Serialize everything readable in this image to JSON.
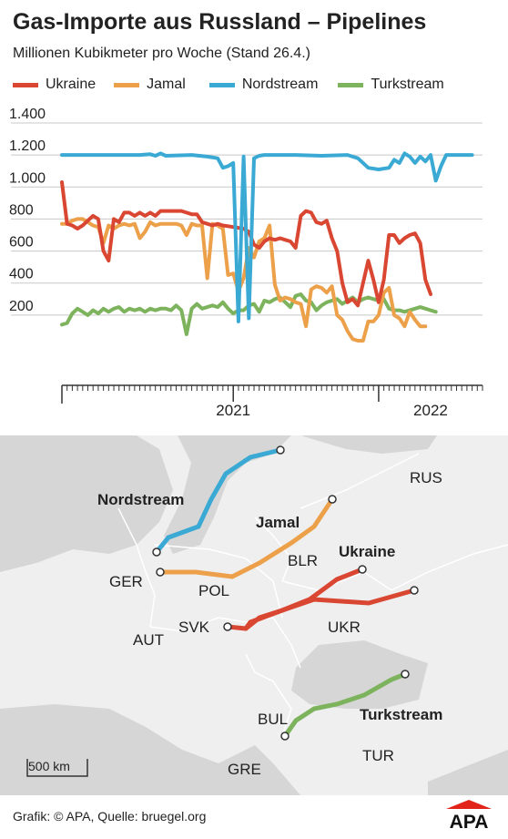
{
  "title": "Gas-Importe aus Russland – Pipelines",
  "subtitle": "Millionen Kubikmeter pro Woche (Stand 26.4.)",
  "legend": [
    {
      "label": "Ukraine",
      "color": "#d94732"
    },
    {
      "label": "Jamal",
      "color": "#eda04a"
    },
    {
      "label": "Nordstream",
      "color": "#3aa9d4"
    },
    {
      "label": "Turkstream",
      "color": "#7cb35c"
    }
  ],
  "chart_data": {
    "type": "line",
    "ylim": [
      0,
      1400
    ],
    "yticks": [
      "200",
      "400",
      "600",
      "800",
      "1.000",
      "1.200",
      "1.400"
    ],
    "x_unit": "weeks since start of series",
    "x_range": [
      0,
      81
    ],
    "xtick_labels": [
      {
        "label": "2021",
        "x": 33
      },
      {
        "label": "2022",
        "x": 71
      }
    ],
    "year_boundaries": [
      33,
      61
    ],
    "grid": true,
    "series": [
      {
        "name": "Ukraine",
        "color": "#d94732",
        "points": [
          [
            0,
            1030
          ],
          [
            1,
            770
          ],
          [
            2,
            760
          ],
          [
            3,
            740
          ],
          [
            4,
            760
          ],
          [
            5,
            790
          ],
          [
            6,
            820
          ],
          [
            7,
            800
          ],
          [
            8,
            600
          ],
          [
            9,
            540
          ],
          [
            10,
            800
          ],
          [
            11,
            780
          ],
          [
            12,
            840
          ],
          [
            13,
            840
          ],
          [
            14,
            820
          ],
          [
            15,
            840
          ],
          [
            16,
            820
          ],
          [
            17,
            840
          ],
          [
            18,
            820
          ],
          [
            19,
            850
          ],
          [
            20,
            850
          ],
          [
            21,
            850
          ],
          [
            22,
            850
          ],
          [
            23,
            850
          ],
          [
            24,
            840
          ],
          [
            25,
            830
          ],
          [
            26,
            830
          ],
          [
            27,
            780
          ],
          [
            28,
            770
          ],
          [
            29,
            760
          ],
          [
            30,
            770
          ],
          [
            31,
            760
          ],
          [
            32,
            755
          ],
          [
            33,
            750
          ],
          [
            34,
            745
          ],
          [
            35,
            740
          ],
          [
            36,
            720
          ],
          [
            37,
            640
          ],
          [
            38,
            620
          ],
          [
            39,
            660
          ],
          [
            40,
            680
          ],
          [
            41,
            670
          ],
          [
            42,
            680
          ],
          [
            43,
            670
          ],
          [
            44,
            660
          ],
          [
            45,
            620
          ],
          [
            46,
            820
          ],
          [
            47,
            850
          ],
          [
            48,
            840
          ],
          [
            49,
            780
          ],
          [
            50,
            770
          ],
          [
            51,
            790
          ],
          [
            52,
            680
          ],
          [
            53,
            600
          ],
          [
            54,
            400
          ],
          [
            55,
            280
          ],
          [
            56,
            300
          ],
          [
            57,
            260
          ],
          [
            58,
            400
          ],
          [
            59,
            540
          ],
          [
            60,
            420
          ],
          [
            61,
            280
          ],
          [
            62,
            420
          ],
          [
            63,
            700
          ],
          [
            64,
            700
          ],
          [
            65,
            650
          ],
          [
            66,
            680
          ],
          [
            67,
            700
          ],
          [
            68,
            710
          ],
          [
            69,
            650
          ],
          [
            70,
            420
          ],
          [
            71,
            330
          ]
        ]
      },
      {
        "name": "Jamal",
        "color": "#eda04a",
        "points": [
          [
            0,
            770
          ],
          [
            1,
            770
          ],
          [
            2,
            790
          ],
          [
            3,
            800
          ],
          [
            4,
            800
          ],
          [
            5,
            780
          ],
          [
            6,
            760
          ],
          [
            7,
            750
          ],
          [
            8,
            650
          ],
          [
            9,
            760
          ],
          [
            10,
            740
          ],
          [
            11,
            760
          ],
          [
            12,
            770
          ],
          [
            13,
            760
          ],
          [
            14,
            770
          ],
          [
            15,
            680
          ],
          [
            16,
            720
          ],
          [
            17,
            780
          ],
          [
            18,
            760
          ],
          [
            19,
            770
          ],
          [
            20,
            770
          ],
          [
            21,
            770
          ],
          [
            22,
            770
          ],
          [
            23,
            760
          ],
          [
            24,
            700
          ],
          [
            25,
            770
          ],
          [
            26,
            760
          ],
          [
            27,
            760
          ],
          [
            28,
            430
          ],
          [
            29,
            770
          ],
          [
            30,
            760
          ],
          [
            31,
            740
          ],
          [
            32,
            450
          ],
          [
            33,
            460
          ],
          [
            34,
            350
          ],
          [
            35,
            430
          ],
          [
            36,
            620
          ],
          [
            37,
            560
          ],
          [
            38,
            660
          ],
          [
            39,
            680
          ],
          [
            40,
            760
          ],
          [
            41,
            390
          ],
          [
            42,
            290
          ],
          [
            43,
            310
          ],
          [
            44,
            300
          ],
          [
            45,
            280
          ],
          [
            46,
            270
          ],
          [
            47,
            130
          ],
          [
            48,
            360
          ],
          [
            49,
            380
          ],
          [
            50,
            370
          ],
          [
            51,
            340
          ],
          [
            52,
            380
          ],
          [
            53,
            200
          ],
          [
            54,
            170
          ],
          [
            55,
            100
          ],
          [
            56,
            50
          ],
          [
            57,
            40
          ],
          [
            58,
            40
          ],
          [
            59,
            160
          ],
          [
            60,
            160
          ],
          [
            61,
            200
          ],
          [
            62,
            340
          ],
          [
            63,
            370
          ],
          [
            64,
            200
          ],
          [
            65,
            180
          ],
          [
            66,
            130
          ],
          [
            67,
            220
          ],
          [
            68,
            170
          ],
          [
            69,
            130
          ],
          [
            70,
            130
          ]
        ]
      },
      {
        "name": "Nordstream",
        "color": "#3aa9d4",
        "points": [
          [
            0,
            1200
          ],
          [
            5,
            1200
          ],
          [
            10,
            1200
          ],
          [
            15,
            1200
          ],
          [
            17,
            1205
          ],
          [
            18,
            1195
          ],
          [
            19,
            1210
          ],
          [
            20,
            1195
          ],
          [
            25,
            1200
          ],
          [
            28,
            1190
          ],
          [
            30,
            1180
          ],
          [
            31,
            1120
          ],
          [
            32,
            1130
          ],
          [
            33,
            1150
          ],
          [
            34,
            160
          ],
          [
            35,
            1190
          ],
          [
            36,
            180
          ],
          [
            37,
            1180
          ],
          [
            38,
            1195
          ],
          [
            39,
            1200
          ],
          [
            45,
            1200
          ],
          [
            50,
            1195
          ],
          [
            55,
            1200
          ],
          [
            57,
            1180
          ],
          [
            59,
            1120
          ],
          [
            61,
            1110
          ],
          [
            63,
            1120
          ],
          [
            64,
            1170
          ],
          [
            65,
            1150
          ],
          [
            66,
            1210
          ],
          [
            67,
            1190
          ],
          [
            68,
            1150
          ],
          [
            69,
            1190
          ],
          [
            70,
            1160
          ],
          [
            71,
            1200
          ],
          [
            72,
            1040
          ],
          [
            73,
            1130
          ],
          [
            74,
            1200
          ],
          [
            75,
            1200
          ],
          [
            79,
            1200
          ]
        ]
      },
      {
        "name": "Turkstream",
        "color": "#7cb35c",
        "points": [
          [
            0,
            140
          ],
          [
            1,
            150
          ],
          [
            2,
            210
          ],
          [
            3,
            240
          ],
          [
            4,
            220
          ],
          [
            5,
            200
          ],
          [
            6,
            230
          ],
          [
            7,
            210
          ],
          [
            8,
            240
          ],
          [
            9,
            220
          ],
          [
            10,
            240
          ],
          [
            11,
            250
          ],
          [
            12,
            220
          ],
          [
            13,
            240
          ],
          [
            14,
            230
          ],
          [
            15,
            240
          ],
          [
            16,
            220
          ],
          [
            17,
            240
          ],
          [
            18,
            230
          ],
          [
            19,
            240
          ],
          [
            20,
            240
          ],
          [
            21,
            230
          ],
          [
            22,
            260
          ],
          [
            23,
            230
          ],
          [
            24,
            80
          ],
          [
            25,
            240
          ],
          [
            26,
            270
          ],
          [
            27,
            240
          ],
          [
            28,
            250
          ],
          [
            29,
            260
          ],
          [
            30,
            250
          ],
          [
            31,
            280
          ],
          [
            32,
            240
          ],
          [
            33,
            210
          ],
          [
            34,
            230
          ],
          [
            35,
            230
          ],
          [
            36,
            260
          ],
          [
            37,
            270
          ],
          [
            38,
            220
          ],
          [
            39,
            290
          ],
          [
            40,
            280
          ],
          [
            41,
            300
          ],
          [
            42,
            310
          ],
          [
            43,
            280
          ],
          [
            44,
            250
          ],
          [
            45,
            320
          ],
          [
            46,
            330
          ],
          [
            47,
            290
          ],
          [
            48,
            280
          ],
          [
            49,
            230
          ],
          [
            50,
            260
          ],
          [
            51,
            280
          ],
          [
            52,
            290
          ],
          [
            53,
            300
          ],
          [
            54,
            270
          ],
          [
            55,
            290
          ],
          [
            56,
            310
          ],
          [
            57,
            280
          ],
          [
            58,
            300
          ],
          [
            59,
            310
          ],
          [
            60,
            300
          ],
          [
            61,
            290
          ],
          [
            62,
            300
          ],
          [
            63,
            240
          ],
          [
            64,
            230
          ],
          [
            65,
            230
          ],
          [
            66,
            220
          ],
          [
            67,
            230
          ],
          [
            68,
            240
          ],
          [
            69,
            250
          ],
          [
            70,
            240
          ],
          [
            71,
            230
          ],
          [
            72,
            220
          ]
        ]
      }
    ]
  },
  "map": {
    "countries": [
      "RUS",
      "BLR",
      "UKR",
      "POL",
      "GER",
      "SVK",
      "AUT",
      "BUL",
      "GRE",
      "TUR"
    ],
    "pipelines": [
      "Nordstream",
      "Jamal",
      "Ukraine",
      "Turkstream"
    ],
    "scale_label": "500 km"
  },
  "footer": "Grafik: © APA, Quelle: bruegel.org",
  "logo_text": "APA",
  "logo_color": "#e2231a"
}
